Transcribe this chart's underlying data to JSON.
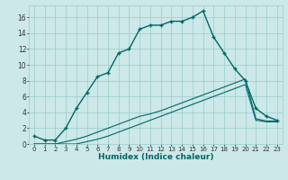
{
  "xlabel": "Humidex (Indice chaleur)",
  "bg_color": "#cce8e8",
  "grid_color": "#99cccc",
  "line_color": "#006666",
  "xlim": [
    -0.5,
    23.5
  ],
  "ylim": [
    0,
    17.5
  ],
  "xticks": [
    0,
    1,
    2,
    3,
    4,
    5,
    6,
    7,
    8,
    9,
    10,
    11,
    12,
    13,
    14,
    15,
    16,
    17,
    18,
    19,
    20,
    21,
    22,
    23
  ],
  "yticks": [
    0,
    2,
    4,
    6,
    8,
    10,
    12,
    14,
    16
  ],
  "line1_x": [
    0,
    1,
    2,
    3,
    4,
    5,
    6,
    7,
    8,
    9,
    10,
    11,
    12,
    13,
    14,
    15,
    16,
    17,
    18,
    19,
    20,
    21,
    22,
    23
  ],
  "line1_y": [
    1,
    0.5,
    0.5,
    2.0,
    4.5,
    6.5,
    8.5,
    9.0,
    11.5,
    12.0,
    14.5,
    15.0,
    15.0,
    15.5,
    15.5,
    16.0,
    16.8,
    13.5,
    11.5,
    9.5,
    8.0,
    4.5,
    3.5,
    3.0
  ],
  "line2_x": [
    0,
    1,
    2,
    3,
    4,
    5,
    6,
    7,
    8,
    9,
    10,
    11,
    12,
    13,
    14,
    15,
    16,
    17,
    18,
    19,
    20,
    21,
    22,
    23
  ],
  "line2_y": [
    0,
    0,
    0,
    0,
    0,
    0.3,
    0.6,
    1.0,
    1.5,
    2.0,
    2.5,
    3.0,
    3.5,
    4.0,
    4.5,
    5.0,
    5.5,
    6.0,
    6.5,
    7.0,
    7.5,
    3.0,
    2.8,
    2.8
  ],
  "line3_x": [
    0,
    1,
    2,
    3,
    4,
    5,
    6,
    7,
    8,
    9,
    10,
    11,
    12,
    13,
    14,
    15,
    16,
    17,
    18,
    19,
    20,
    21,
    22,
    23
  ],
  "line3_y": [
    0,
    0,
    0,
    0.3,
    0.6,
    1.0,
    1.5,
    2.0,
    2.5,
    3.0,
    3.5,
    3.8,
    4.2,
    4.7,
    5.2,
    5.7,
    6.2,
    6.7,
    7.2,
    7.7,
    8.2,
    3.2,
    2.9,
    2.9
  ]
}
